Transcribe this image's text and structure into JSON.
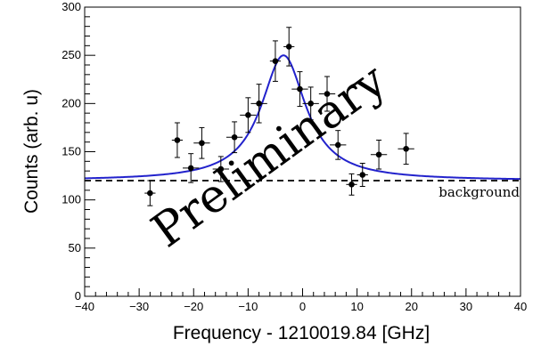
{
  "chart_data": {
    "type": "scatter",
    "xlabel": "Frequency - 1210019.84 [GHz]",
    "ylabel": "Counts (arb. u)",
    "xlim": [
      -40,
      40
    ],
    "ylim": [
      0,
      300
    ],
    "x_ticks": [
      "−40",
      "−30",
      "−20",
      "−10",
      "0",
      "10",
      "20",
      "30",
      "40"
    ],
    "x_tick_values": [
      -40,
      -30,
      -20,
      -10,
      0,
      10,
      20,
      30,
      40
    ],
    "y_ticks": [
      "0",
      "50",
      "100",
      "150",
      "200",
      "250",
      "300"
    ],
    "y_tick_values": [
      0,
      50,
      100,
      150,
      200,
      250,
      300
    ],
    "grid": false,
    "series": [
      {
        "kind": "points",
        "color": "#000000",
        "points": [
          {
            "x": -28.0,
            "y": 107,
            "xerr": 1.0,
            "yerr": 13
          },
          {
            "x": -23.0,
            "y": 162,
            "xerr": 1.0,
            "yerr": 18
          },
          {
            "x": -20.5,
            "y": 133,
            "xerr": 1.5,
            "yerr": 15
          },
          {
            "x": -18.5,
            "y": 159,
            "xerr": 1.5,
            "yerr": 16
          },
          {
            "x": -15.0,
            "y": 132,
            "xerr": 1.5,
            "yerr": 13
          },
          {
            "x": -12.5,
            "y": 165,
            "xerr": 1.5,
            "yerr": 16
          },
          {
            "x": -10.0,
            "y": 188,
            "xerr": 1.5,
            "yerr": 18
          },
          {
            "x": -8.0,
            "y": 200,
            "xerr": 1.5,
            "yerr": 20
          },
          {
            "x": -5.0,
            "y": 244,
            "xerr": 1.0,
            "yerr": 21
          },
          {
            "x": -2.5,
            "y": 259,
            "xerr": 1.0,
            "yerr": 20
          },
          {
            "x": -0.5,
            "y": 215,
            "xerr": 1.5,
            "yerr": 18
          },
          {
            "x": 1.5,
            "y": 200,
            "xerr": 1.5,
            "yerr": 17
          },
          {
            "x": 4.5,
            "y": 210,
            "xerr": 1.5,
            "yerr": 18
          },
          {
            "x": 6.5,
            "y": 157,
            "xerr": 1.5,
            "yerr": 15
          },
          {
            "x": 9.0,
            "y": 116,
            "xerr": 1.0,
            "yerr": 11
          },
          {
            "x": 11.0,
            "y": 126,
            "xerr": 1.0,
            "yerr": 12
          },
          {
            "x": 14.0,
            "y": 147,
            "xerr": 1.5,
            "yerr": 15
          },
          {
            "x": 19.0,
            "y": 153,
            "xerr": 1.5,
            "yerr": 16
          }
        ]
      },
      {
        "kind": "fit",
        "color": "#2222cc",
        "model": "lorentzian",
        "center": -3.5,
        "fwhm": 10,
        "amplitude": 130,
        "offset": 120
      },
      {
        "kind": "background",
        "name": "background",
        "color": "#000000",
        "value": 120
      }
    ],
    "annotations": {
      "background_label": "background",
      "watermark": "Preliminary"
    }
  }
}
